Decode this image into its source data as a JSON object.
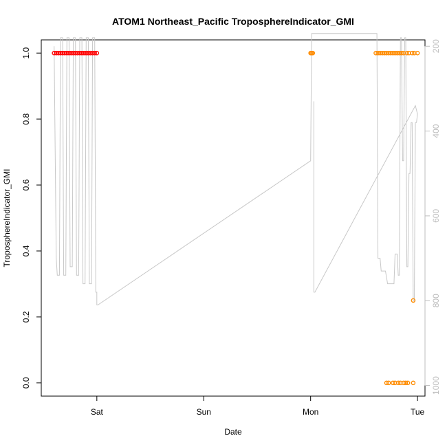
{
  "chart_data": {
    "type": "scatter",
    "title": "ATOM1 Northeast_Pacific TroposphereIndicator_GMI",
    "xlabel": "Date",
    "ylabel": "TroposphereIndicator_GMI",
    "x_ticks": [
      {
        "label": "Sat",
        "value": 0.0
      },
      {
        "label": "Sun",
        "value": 1.0
      },
      {
        "label": "Mon",
        "value": 2.0
      },
      {
        "label": "Tue",
        "value": 3.0
      }
    ],
    "xlim": [
      -0.52,
      3.07
    ],
    "y_ticks": [
      0.0,
      0.2,
      0.4,
      0.6,
      0.8,
      1.0
    ],
    "y_tick_labels": [
      "0.0",
      "0.2",
      "0.4",
      "0.6",
      "0.8",
      "1.0"
    ],
    "ylim": [
      -0.04,
      1.04
    ],
    "right_axis": {
      "ticks": [
        200,
        400,
        600,
        800,
        1000
      ],
      "tick_labels": [
        "200",
        "400",
        "600",
        "800",
        "1000"
      ],
      "lim": [
        1025,
        185
      ],
      "color": "#bdbdbd"
    },
    "grid": false,
    "legend": "none",
    "series": [
      {
        "color": "#ff0000",
        "marker": "circle",
        "x": [
          -0.4,
          -0.38,
          -0.36,
          -0.34,
          -0.32,
          -0.3,
          -0.28,
          -0.26,
          -0.24,
          -0.22,
          -0.2,
          -0.18,
          -0.16,
          -0.14,
          -0.12,
          -0.1,
          -0.08,
          -0.06,
          -0.04,
          -0.02,
          0.0
        ],
        "y": [
          1,
          1,
          1,
          1,
          1,
          1,
          1,
          1,
          1,
          1,
          1,
          1,
          1,
          1,
          1,
          1,
          1,
          1,
          1,
          1,
          1
        ]
      },
      {
        "color": "#ff8c00",
        "marker": "circle",
        "x": [
          2.0,
          2.01,
          2.02,
          2.61,
          2.63,
          2.65,
          2.67,
          2.69,
          2.71,
          2.73,
          2.75,
          2.77,
          2.79,
          2.81,
          2.83,
          2.85,
          2.87,
          2.9,
          2.92,
          2.95,
          2.97,
          3.0,
          2.71,
          2.73,
          2.77,
          2.79,
          2.82,
          2.84,
          2.87,
          2.89,
          2.91,
          2.96,
          2.96
        ],
        "y": [
          1,
          1,
          1,
          1,
          1,
          1,
          1,
          1,
          1,
          1,
          1,
          1,
          1,
          1,
          1,
          1,
          1,
          1,
          1,
          1,
          1,
          1,
          0,
          0,
          0,
          0,
          0,
          0,
          0,
          0,
          0,
          0,
          0.25
        ]
      }
    ],
    "secondary_line": {
      "color": "#c8c8c8",
      "x": [
        -0.4,
        -0.38,
        -0.37,
        -0.35,
        -0.34,
        -0.32,
        -0.31,
        -0.29,
        -0.28,
        -0.26,
        -0.25,
        -0.23,
        -0.22,
        -0.2,
        -0.19,
        -0.17,
        -0.16,
        -0.14,
        -0.13,
        -0.11,
        -0.1,
        -0.08,
        -0.07,
        -0.05,
        -0.04,
        -0.02,
        -0.01,
        0.0,
        0.0,
        0.01,
        2.0,
        2.01,
        2.02,
        2.03,
        2.6,
        2.61,
        2.62,
        2.63,
        2.65,
        2.66,
        2.7,
        2.72,
        2.78,
        2.79,
        2.81,
        2.82,
        2.83,
        2.84,
        2.85,
        2.86,
        2.87,
        2.88,
        2.89,
        2.9,
        2.91,
        2.92,
        2.93,
        2.94,
        2.95,
        2.96,
        2.97,
        2.98,
        2.99,
        3.0,
        2.98,
        2.04,
        2.03,
        2.03
      ],
      "y": [
        200,
        700,
        740,
        740,
        180,
        180,
        740,
        740,
        180,
        180,
        720,
        720,
        180,
        180,
        740,
        740,
        180,
        180,
        760,
        760,
        180,
        180,
        760,
        760,
        180,
        180,
        780,
        780,
        810,
        810,
        470,
        170,
        170,
        170,
        170,
        170,
        170,
        700,
        700,
        730,
        730,
        760,
        760,
        690,
        690,
        740,
        740,
        180,
        180,
        470,
        470,
        180,
        180,
        720,
        720,
        500,
        500,
        380,
        380,
        800,
        800,
        380,
        380,
        360,
        340,
        780,
        780,
        330
      ]
    }
  }
}
